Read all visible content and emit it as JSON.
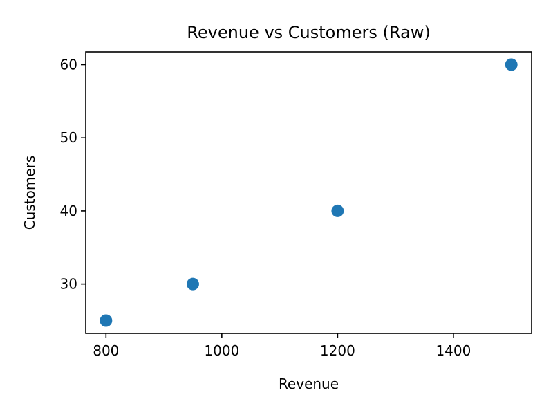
{
  "chart_data": {
    "type": "scatter",
    "title": "Revenue vs Customers (Raw)",
    "xlabel": "Revenue",
    "ylabel": "Customers",
    "xlim": [
      765,
      1535
    ],
    "ylim": [
      23.25,
      61.75
    ],
    "x_ticks": [
      800,
      1000,
      1200,
      1400
    ],
    "y_ticks": [
      30,
      40,
      50,
      60
    ],
    "grid": false,
    "legend": "none",
    "series": [
      {
        "color": "#1f77b4",
        "points": [
          {
            "x": 800,
            "y": 25
          },
          {
            "x": 950,
            "y": 30
          },
          {
            "x": 1200,
            "y": 40
          },
          {
            "x": 1500,
            "y": 60
          }
        ]
      }
    ]
  }
}
